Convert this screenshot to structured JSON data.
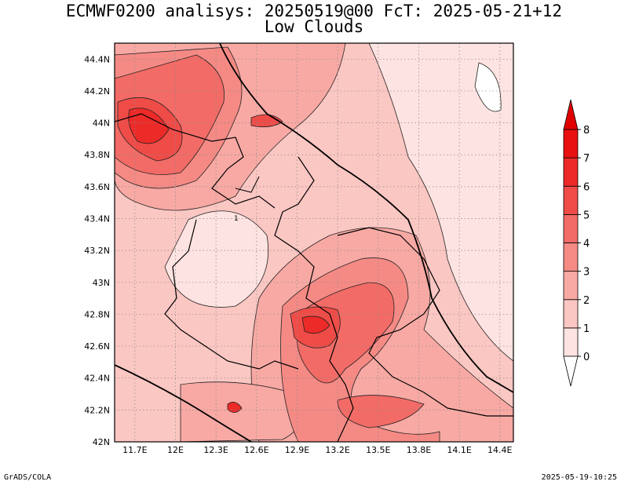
{
  "header": {
    "title": "ECMWF0200 analisys: 20250519@00 FcT: 2025-05-21+12",
    "subtitle": "Low Clouds"
  },
  "axes": {
    "x_ticks": [
      "11.7E",
      "12E",
      "12.3E",
      "12.6E",
      "12.9E",
      "13.2E",
      "13.5E",
      "13.8E",
      "14.1E",
      "14.4E"
    ],
    "y_ticks": [
      "44.4N",
      "44.2N",
      "44N",
      "43.8N",
      "43.6N",
      "43.4N",
      "43.2N",
      "43N",
      "42.8N",
      "42.6N",
      "42.4N",
      "42.2N",
      "42N"
    ],
    "lon_range": [
      11.55,
      14.5
    ],
    "lat_range": [
      42.0,
      44.5
    ]
  },
  "colorbar": {
    "levels": [
      "0",
      "1",
      "2",
      "3",
      "4",
      "5",
      "6",
      "7",
      "8"
    ],
    "colors": [
      "#ffffff",
      "#fde3e1",
      "#fbc7c3",
      "#f8a9a4",
      "#f58a85",
      "#f26b66",
      "#ef4c48",
      "#ec2a28",
      "#e81010"
    ]
  },
  "footer": {
    "left": "GrADS/COLA",
    "right": "2025-05-19-10:25"
  },
  "map_features": {
    "field": "low clouds",
    "contour_label": "1"
  }
}
